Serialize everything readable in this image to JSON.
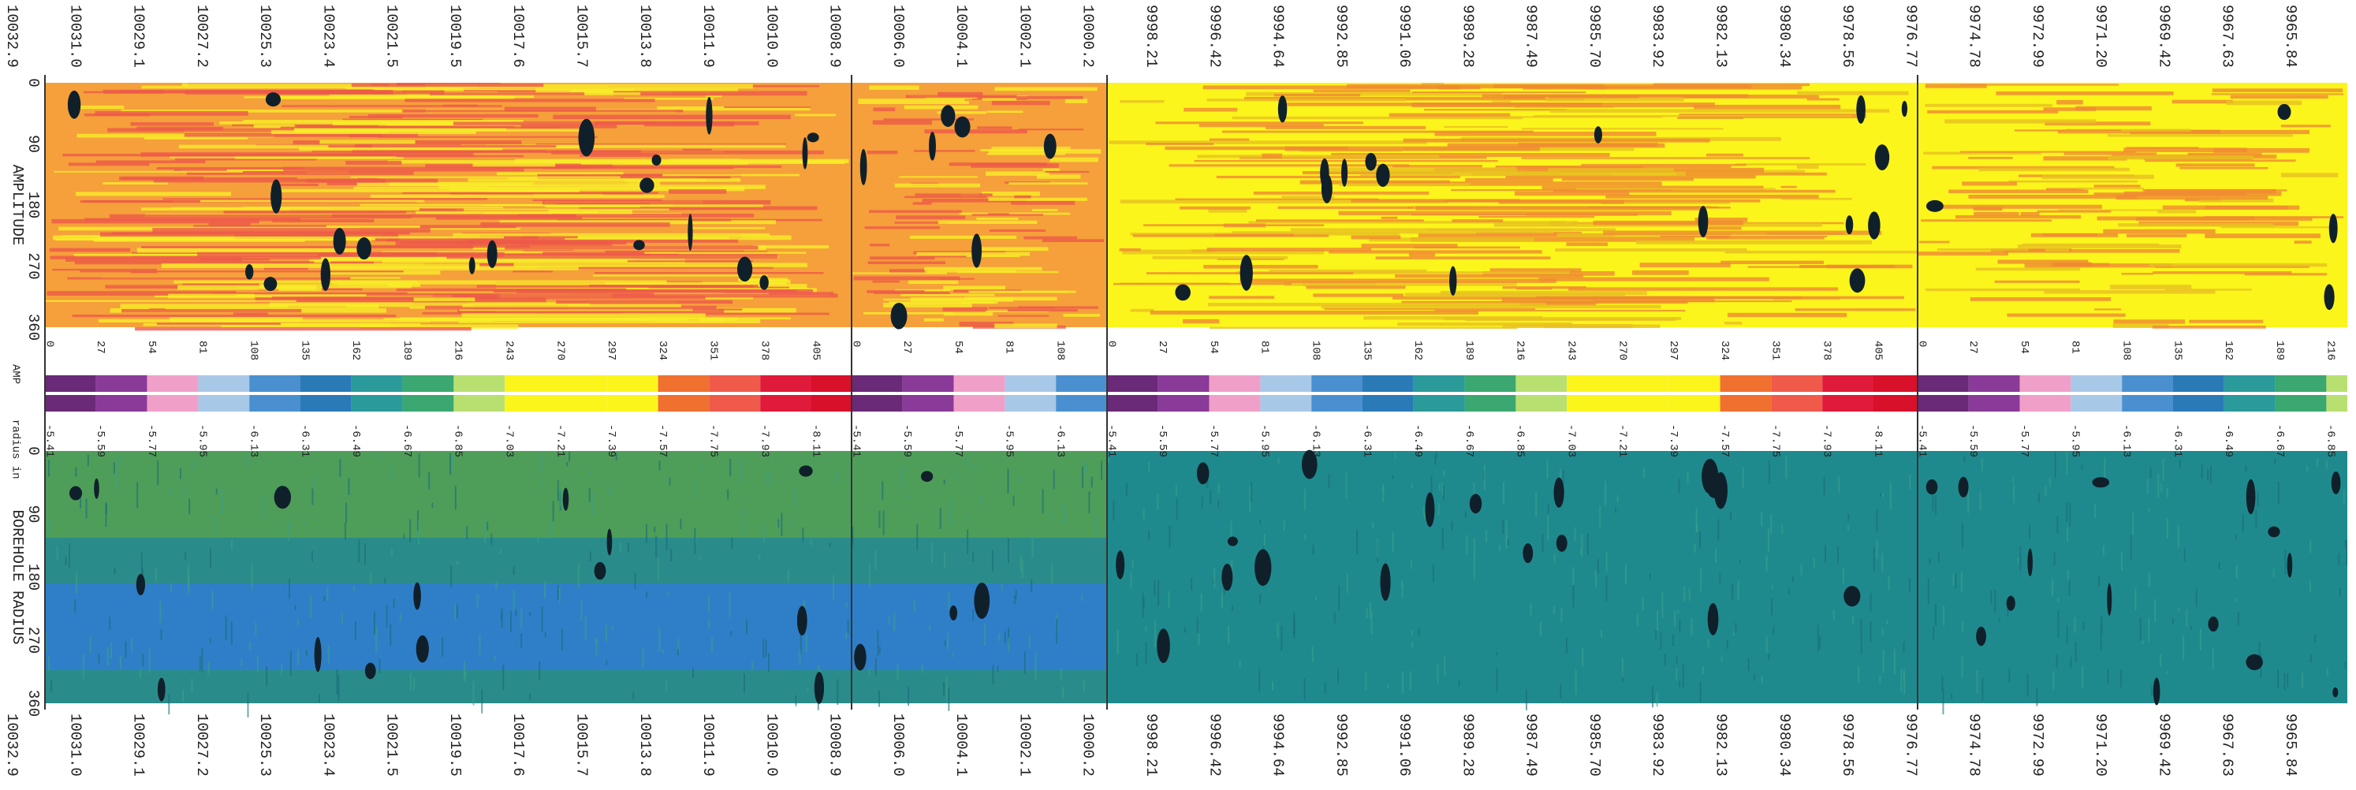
{
  "depth_labels": [
    "10032.9",
    "10031.0",
    "10029.1",
    "10027.2",
    "10025.3",
    "10023.4",
    "10021.5",
    "10019.5",
    "10017.6",
    "10015.7",
    "10013.8",
    "10011.9",
    "10010.0",
    "10008.9",
    "10006.0",
    "10004.1",
    "10002.1",
    "10000.2",
    "9998.21",
    "9996.42",
    "9994.64",
    "9992.85",
    "9991.06",
    "9989.28",
    "9987.49",
    "9985.70",
    "9983.92",
    "9982.13",
    "9980.34",
    "9978.56",
    "9976.77",
    "9974.78",
    "9972.99",
    "9971.20",
    "9969.42",
    "9967.63",
    "9965.84"
  ],
  "amplitude_panel": {
    "title": "AMPLITUDE",
    "angle_labels": [
      "0",
      "90",
      "180",
      "270",
      "360"
    ]
  },
  "radius_panel": {
    "title": "BOREHOLE RADIUS",
    "angle_labels": [
      "0",
      "90",
      "180",
      "270",
      "360"
    ]
  },
  "amp_scale": {
    "label": "AMP",
    "ticks": [
      "0",
      "27",
      "54",
      "81",
      "108",
      "135",
      "162",
      "189",
      "216",
      "243",
      "270",
      "297",
      "324",
      "351",
      "378",
      "405"
    ]
  },
  "radius_scale": {
    "label": "radius in",
    "ticks": [
      "-5.41",
      "-5.59",
      "-5.77",
      "-5.95",
      "-6.13",
      "-6.31",
      "-6.49",
      "-6.67",
      "-6.85",
      "-7.03",
      "-7.21",
      "-7.39",
      "-7.57",
      "-7.75",
      "-7.93",
      "-8.11"
    ]
  }
}
